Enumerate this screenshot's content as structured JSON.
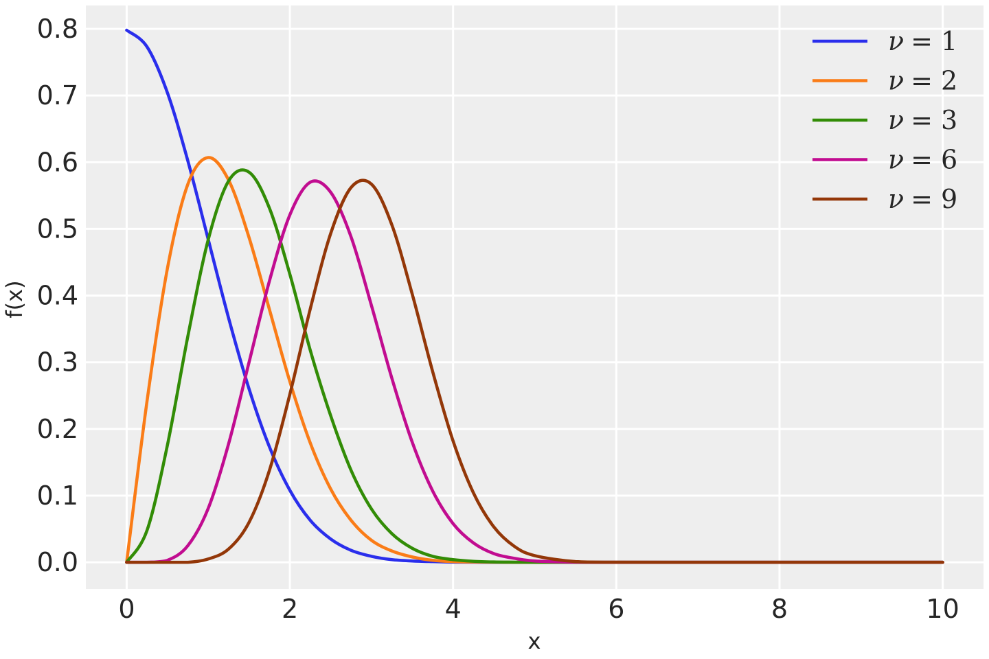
{
  "chart_data": {
    "type": "line",
    "title": "",
    "xlabel": "x",
    "ylabel": "f(x)",
    "xlim": [
      -0.5,
      10.5
    ],
    "ylim": [
      -0.04,
      0.835
    ],
    "xticks": [
      0,
      2,
      4,
      6,
      8,
      10
    ],
    "xtick_labels": [
      "0",
      "2",
      "4",
      "6",
      "8",
      "10"
    ],
    "yticks": [
      0.0,
      0.1,
      0.2,
      0.3,
      0.4,
      0.5,
      0.6,
      0.7,
      0.8
    ],
    "ytick_labels": [
      "0.0",
      "0.1",
      "0.2",
      "0.3",
      "0.4",
      "0.5",
      "0.6",
      "0.7",
      "0.8"
    ],
    "grid": true,
    "background_color": "#eeeeee",
    "grid_color": "#ffffff",
    "legend_position": "top-right",
    "x": [
      0,
      0.25,
      0.5,
      0.75,
      1.0,
      1.25,
      1.5,
      1.75,
      2.0,
      2.25,
      2.5,
      2.75,
      3.0,
      3.25,
      3.5,
      3.75,
      4.0,
      4.25,
      4.5,
      4.75,
      5.0,
      5.5,
      6.0,
      7.0,
      8.0,
      9.0,
      10.0
    ],
    "series": [
      {
        "name": "ν = 1",
        "legend_symbol": "ν",
        "legend_value": "= 1",
        "color": "#2a2eec",
        "values": [
          0.798,
          0.773,
          0.704,
          0.602,
          0.484,
          0.366,
          0.26,
          0.173,
          0.108,
          0.063,
          0.035,
          0.018,
          0.009,
          0.004,
          0.002,
          0.001,
          0.0003,
          0.0001,
          0.0,
          0.0,
          0.0,
          0.0,
          0.0,
          0.0,
          0.0,
          0.0,
          0.0
        ]
      },
      {
        "name": "ν = 2",
        "legend_symbol": "ν",
        "legend_value": "= 2",
        "color": "#fa7c17",
        "values": [
          0.0,
          0.242,
          0.441,
          0.567,
          0.607,
          0.573,
          0.487,
          0.379,
          0.271,
          0.179,
          0.11,
          0.063,
          0.033,
          0.017,
          0.008,
          0.003,
          0.001,
          0.0005,
          0.0002,
          0.0,
          0.0,
          0.0,
          0.0,
          0.0,
          0.0,
          0.0,
          0.0
        ]
      },
      {
        "name": "ν = 3",
        "legend_symbol": "ν",
        "legend_value": "= 3",
        "color": "#328c06",
        "values": [
          0.0,
          0.048,
          0.176,
          0.339,
          0.484,
          0.572,
          0.585,
          0.531,
          0.432,
          0.318,
          0.22,
          0.138,
          0.08,
          0.043,
          0.021,
          0.009,
          0.004,
          0.0015,
          0.0005,
          0.0002,
          0.0,
          0.0,
          0.0,
          0.0,
          0.0,
          0.0,
          0.0
        ]
      },
      {
        "name": "ν = 6",
        "legend_symbol": "ν",
        "legend_value": "= 6",
        "color": "#c10c90",
        "values": [
          0.0,
          0.0,
          0.003,
          0.025,
          0.081,
          0.178,
          0.3,
          0.422,
          0.521,
          0.57,
          0.555,
          0.488,
          0.385,
          0.276,
          0.18,
          0.107,
          0.058,
          0.029,
          0.013,
          0.006,
          0.002,
          0.0003,
          0.0,
          0.0,
          0.0,
          0.0,
          0.0
        ]
      },
      {
        "name": "ν = 9",
        "legend_symbol": "ν",
        "legend_value": "= 9",
        "color": "#933708",
        "values": [
          0.0,
          0.0,
          0.0,
          0.0,
          0.005,
          0.02,
          0.06,
          0.138,
          0.252,
          0.38,
          0.493,
          0.562,
          0.567,
          0.506,
          0.402,
          0.286,
          0.182,
          0.104,
          0.053,
          0.024,
          0.01,
          0.001,
          0.0001,
          0.0,
          0.0,
          0.0,
          0.0
        ]
      }
    ]
  }
}
